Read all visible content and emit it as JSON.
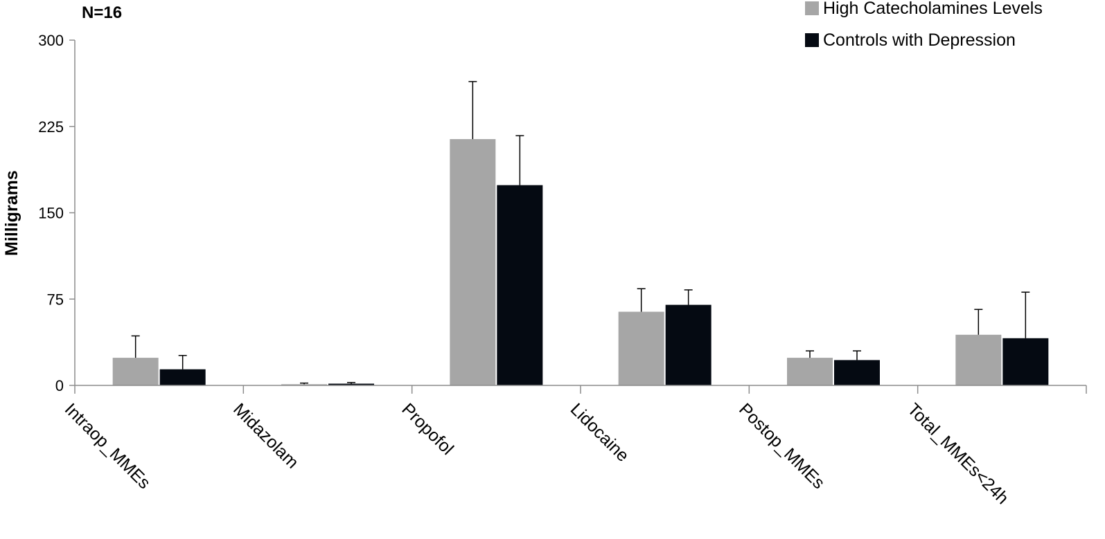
{
  "chart_data": {
    "type": "bar",
    "annotation": "N=16",
    "ylabel": "Milligrams",
    "xlabel": "",
    "ylim": [
      0,
      300
    ],
    "yticks": [
      0,
      75,
      150,
      225,
      300
    ],
    "categories": [
      "Intraop_MMEs",
      "Midazolam",
      "Propofol",
      "Lidocaine",
      "Postop_MMEs",
      "Total_MMEs<24h"
    ],
    "series": [
      {
        "name": "High Catecholamines Levels",
        "color": "#a6a6a6",
        "values": [
          24,
          1,
          214,
          64,
          24,
          44
        ],
        "error": [
          19,
          1,
          50,
          20,
          6,
          22
        ]
      },
      {
        "name": "Controls with Depression",
        "color": "#050a12",
        "values": [
          14,
          1.5,
          174,
          70,
          22,
          41
        ],
        "error": [
          12,
          1,
          43,
          13,
          8,
          40
        ]
      }
    ],
    "legend_position": "top-right",
    "grid": false
  }
}
